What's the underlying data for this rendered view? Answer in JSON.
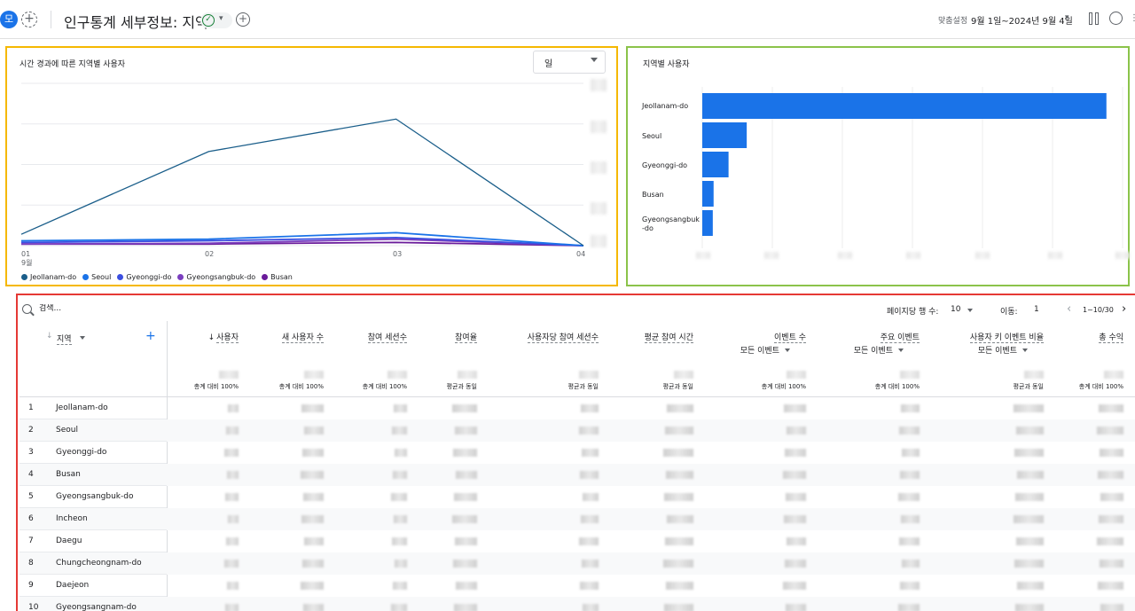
{
  "header": {
    "avatar_letter": "모",
    "add_icon": "plus-icon",
    "title": "인구통계 세부정보: 지역",
    "status_icon": "check-circle-icon",
    "date_label": "맞춤설정",
    "date_range": "9월 1일~2024년 9월 4일"
  },
  "line_chart": {
    "title": "시간 경과에 따른 지역별 사용자",
    "granularity": "일",
    "x_ticks": [
      "01",
      "02",
      "03",
      "04"
    ],
    "x_month": "9월",
    "legend": [
      {
        "name": "Jeollanam-do",
        "color": "#1a5e8a"
      },
      {
        "name": "Seoul",
        "color": "#1a73e8"
      },
      {
        "name": "Gyeonggi-do",
        "color": "#3c4fe0"
      },
      {
        "name": "Gyeongsangbuk-do",
        "color": "#7b3fbf"
      },
      {
        "name": "Busan",
        "color": "#6a1b9a"
      }
    ]
  },
  "bar_chart": {
    "title": "지역별 사용자",
    "color": "#1a73e8"
  },
  "chart_data": [
    {
      "type": "line",
      "title": "시간 경과에 따른 지역별 사용자",
      "x": [
        "01",
        "02",
        "03",
        "04"
      ],
      "ylim": [
        0,
        100
      ],
      "grid": true,
      "legend": "bottom",
      "series": [
        {
          "name": "Jeollanam-do",
          "values": [
            7,
            58,
            78,
            0
          ]
        },
        {
          "name": "Seoul",
          "values": [
            3,
            4,
            8,
            0
          ]
        },
        {
          "name": "Gyeonggi-do",
          "values": [
            2,
            3,
            5,
            0
          ]
        },
        {
          "name": "Gyeongsangbuk-do",
          "values": [
            1,
            1.5,
            4,
            0
          ]
        },
        {
          "name": "Busan",
          "values": [
            1,
            1,
            2,
            0
          ]
        }
      ]
    },
    {
      "type": "bar",
      "title": "지역별 사용자",
      "orientation": "horizontal",
      "categories": [
        "Jeollanam-do",
        "Seoul",
        "Gyeonggi-do",
        "Busan",
        "Gyeongsangbuk-do"
      ],
      "values": [
        100,
        11,
        6.5,
        2.8,
        2.6
      ],
      "xlim": [
        0,
        104
      ],
      "grid": true
    }
  ],
  "table": {
    "search_placeholder": "검색...",
    "rows_per_page_label": "페이지당 행 수:",
    "rows_per_page": "10",
    "goto_label": "이동:",
    "goto_value": "1",
    "page_info": "1~10/30",
    "dimension_header": "지역",
    "columns": [
      {
        "label": "사용자",
        "sorted": "↓",
        "sub": "",
        "total": "총계 대비 100%"
      },
      {
        "label": "새 사용자 수",
        "sorted": "",
        "sub": "",
        "total": "총계 대비 100%"
      },
      {
        "label": "참여 세션수",
        "sorted": "",
        "sub": "",
        "total": "총계 대비 100%"
      },
      {
        "label": "참여율",
        "sorted": "",
        "sub": "",
        "total": "평균과 동일"
      },
      {
        "label": "사용자당 참여 세션수",
        "sorted": "",
        "sub": "",
        "total": "평균과 동일"
      },
      {
        "label": "평균 참여 시간",
        "sorted": "",
        "sub": "",
        "total": "평균과 동일"
      },
      {
        "label": "이벤트 수",
        "sorted": "",
        "sub": "모든 이벤트",
        "total": "총계 대비 100%"
      },
      {
        "label": "주요 이벤트",
        "sorted": "",
        "sub": "모든 이벤트",
        "total": "총계 대비 100%"
      },
      {
        "label": "사용자 키 이벤트 비율",
        "sorted": "",
        "sub": "모든 이벤트",
        "total": "평균과 동일"
      },
      {
        "label": "총 수익",
        "sorted": "",
        "sub": "",
        "total": "총계 대비 100%"
      }
    ],
    "rows": [
      {
        "n": "1",
        "region": "Jeollanam-do"
      },
      {
        "n": "2",
        "region": "Seoul"
      },
      {
        "n": "3",
        "region": "Gyeonggi-do"
      },
      {
        "n": "4",
        "region": "Busan"
      },
      {
        "n": "5",
        "region": "Gyeongsangbuk-do"
      },
      {
        "n": "6",
        "region": "Incheon"
      },
      {
        "n": "7",
        "region": "Daegu"
      },
      {
        "n": "8",
        "region": "Chungcheongnam-do"
      },
      {
        "n": "9",
        "region": "Daejeon"
      },
      {
        "n": "10",
        "region": "Gyeongsangnam-do"
      }
    ]
  }
}
